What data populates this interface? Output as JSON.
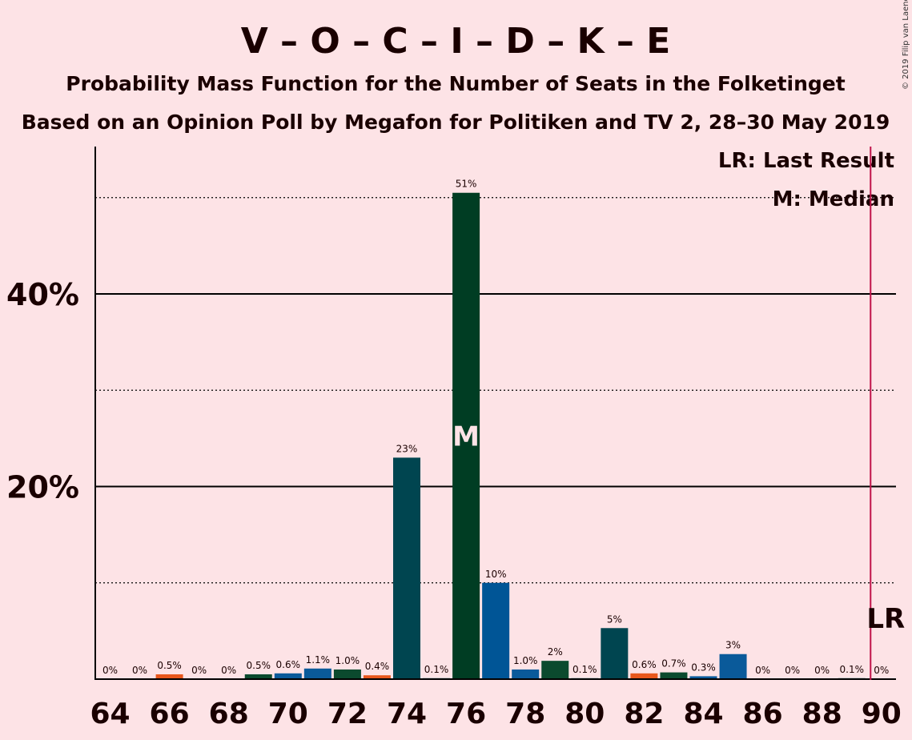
{
  "chart_data": {
    "type": "bar",
    "title": "V – O – C – I – D – K – E",
    "subtitle": "Probability Mass Function for the Number of Seats in the Folketinget",
    "subtitle2": "Based on an Opinion Poll by Megafon for Politiken and TV 2, 28–30 May 2019",
    "copyright": "© 2019 Filip van Laenen",
    "legend_lr": "LR: Last Result",
    "legend_m": "M: Median",
    "median_marker": "M",
    "lr_marker": "LR",
    "median_seat": 76,
    "last_result_seat": 89.5,
    "ylim": [
      0,
      55
    ],
    "y_ticks": [
      {
        "value": 20,
        "label": "20%"
      },
      {
        "value": 40,
        "label": "40%"
      }
    ],
    "y_dotted": [
      10,
      30,
      50
    ],
    "x_tick_labels": [
      "64",
      "66",
      "68",
      "70",
      "72",
      "74",
      "76",
      "78",
      "80",
      "82",
      "84",
      "86",
      "88",
      "90"
    ],
    "bars": [
      {
        "seat": 64,
        "value": 0,
        "label": "0%",
        "color": "#006a6a"
      },
      {
        "seat": 65,
        "value": 0,
        "label": "0%",
        "color": "#006a6a"
      },
      {
        "seat": 66,
        "value": 0.5,
        "label": "0.5%",
        "color": "#e8571c"
      },
      {
        "seat": 67,
        "value": 0,
        "label": "0%",
        "color": "#006a6a"
      },
      {
        "seat": 68,
        "value": 0,
        "label": "0%",
        "color": "#006a6a"
      },
      {
        "seat": 69,
        "value": 0.5,
        "label": "0.5%",
        "color": "#0b4a2e"
      },
      {
        "seat": 70,
        "value": 0.6,
        "label": "0.6%",
        "color": "#0a5a9a"
      },
      {
        "seat": 71,
        "value": 1.1,
        "label": "1.1%",
        "color": "#0a5a9a"
      },
      {
        "seat": 72,
        "value": 1.0,
        "label": "1.0%",
        "color": "#0b4a2e"
      },
      {
        "seat": 73,
        "value": 0.4,
        "label": "0.4%",
        "color": "#e8571c"
      },
      {
        "seat": 74,
        "value": 23,
        "label": "23%",
        "color": "#004550"
      },
      {
        "seat": 75,
        "value": 0.1,
        "label": "0.1%",
        "color": "#006a6a"
      },
      {
        "seat": 76,
        "value": 50.5,
        "label": "51%",
        "color": "#003d23"
      },
      {
        "seat": 77,
        "value": 10,
        "label": "10%",
        "color": "#005596"
      },
      {
        "seat": 78,
        "value": 1.0,
        "label": "1.0%",
        "color": "#0a5a9a"
      },
      {
        "seat": 79,
        "value": 1.9,
        "label": "2%",
        "color": "#0b4a2e"
      },
      {
        "seat": 80,
        "value": 0.1,
        "label": "0.1%",
        "color": "#006a6a"
      },
      {
        "seat": 81,
        "value": 5.3,
        "label": "5%",
        "color": "#004550"
      },
      {
        "seat": 82,
        "value": 0.6,
        "label": "0.6%",
        "color": "#e8571c"
      },
      {
        "seat": 83,
        "value": 0.7,
        "label": "0.7%",
        "color": "#0b4a2e"
      },
      {
        "seat": 84,
        "value": 0.3,
        "label": "0.3%",
        "color": "#0a5a9a"
      },
      {
        "seat": 85,
        "value": 2.6,
        "label": "3%",
        "color": "#0a5a9a"
      },
      {
        "seat": 86,
        "value": 0,
        "label": "0%",
        "color": "#006a6a"
      },
      {
        "seat": 87,
        "value": 0,
        "label": "0%",
        "color": "#006a6a"
      },
      {
        "seat": 88,
        "value": 0,
        "label": "0%",
        "color": "#006a6a"
      },
      {
        "seat": 89,
        "value": 0.1,
        "label": "0.1%",
        "color": "#006a6a"
      },
      {
        "seat": 90,
        "value": 0,
        "label": "0%",
        "color": "#006a6a"
      }
    ],
    "background_color": "#fde3e6",
    "lr_line_color": "#c0134a"
  }
}
